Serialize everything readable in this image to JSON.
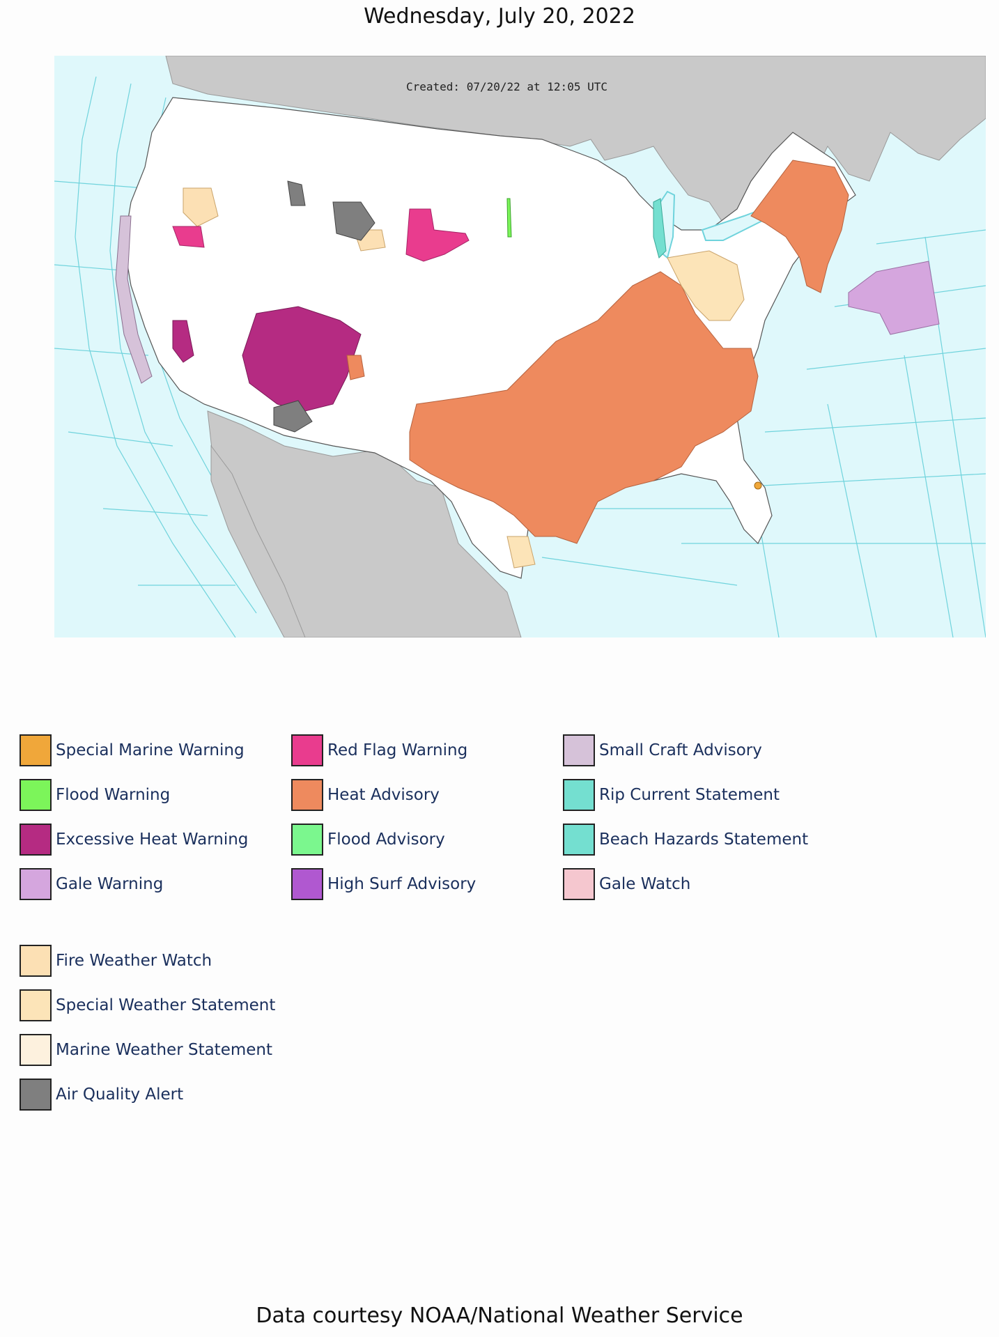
{
  "title": "Wednesday, July 20, 2022",
  "map": {
    "created_stamp": "Created: 07/20/22 at 12:05 UTC",
    "colors": {
      "ocean": "#dff8fb",
      "land_foreign": "#c9c9c9",
      "land_us": "#ffffff",
      "marine_zone_lines": "#6fd3dc",
      "county_lines": "#bdbdbd"
    }
  },
  "legend": {
    "col1": [
      {
        "label": "Special Marine Warning",
        "color": "#f0a73a"
      },
      {
        "label": "Flood Warning",
        "color": "#7cf55a"
      },
      {
        "label": "Excessive Heat Warning",
        "color": "#b52b82"
      },
      {
        "label": "Gale Warning",
        "color": "#d5a6de"
      }
    ],
    "col2": [
      {
        "label": "Red Flag Warning",
        "color": "#e93c8e"
      },
      {
        "label": "Heat Advisory",
        "color": "#ee8a5e"
      },
      {
        "label": "Flood Advisory",
        "color": "#7bf78e"
      },
      {
        "label": "High Surf Advisory",
        "color": "#b058d0"
      }
    ],
    "col3": [
      {
        "label": "Small Craft Advisory",
        "color": "#d6c2d9"
      },
      {
        "label": "Rip Current Statement",
        "color": "#74dfd0"
      },
      {
        "label": "Beach Hazards Statement",
        "color": "#74dfd0"
      },
      {
        "label": "Gale Watch",
        "color": "#f5c7cf"
      }
    ],
    "col4": [
      {
        "label": "Fire Weather Watch",
        "color": "#fce0b4"
      },
      {
        "label": "Special Weather Statement",
        "color": "#fce4b8"
      },
      {
        "label": "Marine Weather Statement",
        "color": "#fdf1de"
      },
      {
        "label": "Air Quality Alert",
        "color": "#7f7f7f"
      }
    ]
  },
  "credit": "Data courtesy NOAA/National Weather Service"
}
